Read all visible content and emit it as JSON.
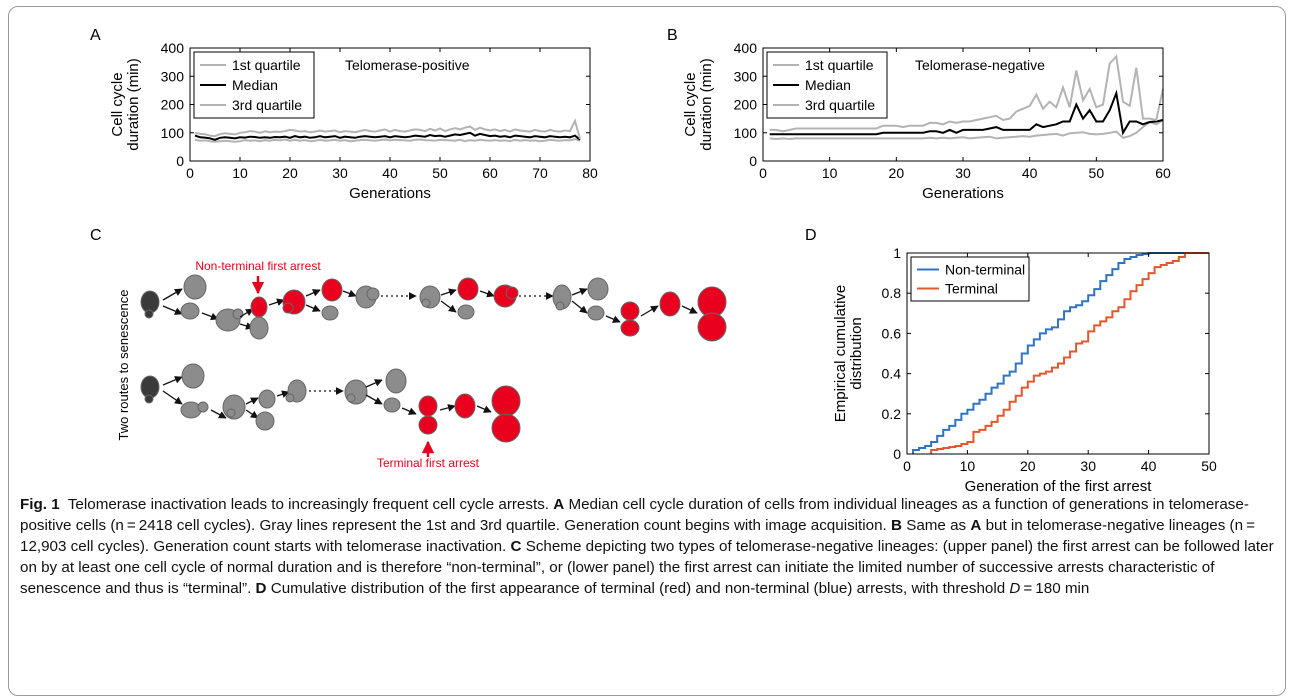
{
  "chart_data": [
    {
      "panel": "A",
      "type": "line",
      "annotation": "Telomerase-positive",
      "xlabel": "Generations",
      "ylabel_lines": [
        "Cell cycle",
        "duration (min)"
      ],
      "xlim": [
        0,
        80
      ],
      "ylim": [
        0,
        400
      ],
      "xticks": [
        0,
        10,
        20,
        30,
        40,
        50,
        60,
        70,
        80
      ],
      "yticks": [
        0,
        100,
        200,
        300,
        400
      ],
      "legend_position": "top-left",
      "x": [
        1,
        2,
        3,
        4,
        5,
        6,
        7,
        8,
        9,
        10,
        11,
        12,
        13,
        14,
        15,
        16,
        17,
        18,
        19,
        20,
        21,
        22,
        23,
        24,
        25,
        26,
        27,
        28,
        29,
        30,
        31,
        32,
        33,
        34,
        35,
        36,
        37,
        38,
        39,
        40,
        41,
        42,
        43,
        44,
        45,
        46,
        47,
        48,
        49,
        50,
        51,
        52,
        53,
        54,
        55,
        56,
        57,
        58,
        59,
        60,
        61,
        62,
        63,
        64,
        65,
        66,
        67,
        68,
        69,
        70,
        71,
        72,
        73,
        74,
        75,
        76,
        77,
        78
      ],
      "series": [
        {
          "name": "1st quartile",
          "color": "#b3b3b3",
          "values": [
            75,
            72,
            73,
            70,
            68,
            70,
            72,
            70,
            68,
            70,
            74,
            72,
            73,
            70,
            74,
            72,
            75,
            73,
            76,
            72,
            75,
            72,
            74,
            70,
            72,
            75,
            72,
            73,
            75,
            72,
            74,
            70,
            72,
            74,
            75,
            73,
            72,
            74,
            76,
            73,
            75,
            74,
            73,
            72,
            75,
            76,
            74,
            73,
            72,
            75,
            74,
            73,
            72,
            75,
            70,
            74,
            72,
            75,
            73,
            72,
            74,
            72,
            73,
            70,
            75,
            72,
            74,
            72,
            73,
            70,
            72,
            75,
            73,
            72,
            74,
            73,
            78,
            72
          ]
        },
        {
          "name": "Median",
          "color": "#000000",
          "values": [
            90,
            84,
            83,
            80,
            75,
            82,
            84,
            82,
            80,
            84,
            83,
            86,
            85,
            82,
            84,
            82,
            85,
            84,
            86,
            82,
            88,
            84,
            86,
            82,
            84,
            88,
            84,
            86,
            88,
            82,
            86,
            84,
            82,
            86,
            88,
            86,
            84,
            86,
            88,
            84,
            88,
            86,
            84,
            86,
            90,
            88,
            86,
            92,
            88,
            90,
            86,
            90,
            94,
            92,
            96,
            100,
            90,
            96,
            92,
            88,
            90,
            86,
            88,
            84,
            90,
            88,
            86,
            84,
            88,
            86,
            84,
            88,
            86,
            84,
            86,
            84,
            90,
            75
          ]
        },
        {
          "name": "3rd quartile",
          "color": "#b3b3b3",
          "values": [
            100,
            96,
            95,
            90,
            88,
            95,
            98,
            96,
            94,
            100,
            102,
            106,
            104,
            100,
            105,
            102,
            104,
            103,
            106,
            110,
            108,
            104,
            106,
            102,
            104,
            108,
            104,
            106,
            108,
            102,
            106,
            104,
            102,
            106,
            110,
            106,
            104,
            108,
            112,
            104,
            110,
            106,
            104,
            108,
            112,
            110,
            106,
            114,
            108,
            115,
            106,
            112,
            116,
            112,
            118,
            122,
            110,
            118,
            112,
            108,
            112,
            106,
            110,
            104,
            112,
            108,
            106,
            104,
            110,
            106,
            104,
            110,
            106,
            104,
            108,
            106,
            142,
            78
          ]
        }
      ]
    },
    {
      "panel": "B",
      "type": "line",
      "annotation": "Telomerase-negative",
      "xlabel": "Generations",
      "ylabel_lines": [
        "Cell cycle",
        "duration (min)"
      ],
      "xlim": [
        0,
        60
      ],
      "ylim": [
        0,
        400
      ],
      "xticks": [
        0,
        10,
        20,
        30,
        40,
        50,
        60
      ],
      "yticks": [
        0,
        100,
        200,
        300,
        400
      ],
      "legend_position": "top-left",
      "x": [
        1,
        2,
        3,
        4,
        5,
        6,
        7,
        8,
        9,
        10,
        11,
        12,
        13,
        14,
        15,
        16,
        17,
        18,
        19,
        20,
        21,
        22,
        23,
        24,
        25,
        26,
        27,
        28,
        29,
        30,
        31,
        32,
        33,
        34,
        35,
        36,
        37,
        38,
        39,
        40,
        41,
        42,
        43,
        44,
        45,
        46,
        47,
        48,
        49,
        50,
        51,
        52,
        53,
        54,
        55,
        56,
        57,
        58,
        59,
        60
      ],
      "series": [
        {
          "name": "1st quartile",
          "color": "#b3b3b3",
          "values": [
            80,
            78,
            80,
            78,
            80,
            80,
            80,
            80,
            80,
            80,
            80,
            80,
            80,
            80,
            80,
            80,
            80,
            80,
            80,
            80,
            80,
            80,
            80,
            80,
            82,
            80,
            82,
            80,
            82,
            84,
            80,
            82,
            84,
            86,
            80,
            82,
            84,
            86,
            88,
            86,
            90,
            92,
            94,
            96,
            90,
            98,
            100,
            102,
            96,
            94,
            96,
            100,
            104,
            82,
            88,
            100,
            120,
            138,
            130,
            145
          ]
        },
        {
          "name": "Median",
          "color": "#000000",
          "values": [
            95,
            95,
            95,
            95,
            95,
            95,
            95,
            95,
            95,
            95,
            95,
            95,
            95,
            95,
            95,
            95,
            95,
            100,
            100,
            100,
            100,
            100,
            100,
            100,
            105,
            105,
            100,
            110,
            100,
            110,
            110,
            110,
            110,
            115,
            120,
            110,
            110,
            110,
            110,
            110,
            130,
            120,
            125,
            130,
            140,
            140,
            200,
            150,
            180,
            140,
            140,
            180,
            240,
            100,
            140,
            140,
            130,
            138,
            140,
            145
          ]
        },
        {
          "name": "3rd quartile",
          "color": "#b3b3b3",
          "values": [
            110,
            110,
            105,
            110,
            115,
            115,
            115,
            115,
            115,
            115,
            115,
            115,
            115,
            115,
            115,
            115,
            115,
            125,
            125,
            125,
            120,
            125,
            125,
            125,
            135,
            135,
            130,
            140,
            135,
            140,
            140,
            145,
            150,
            155,
            160,
            145,
            150,
            175,
            185,
            195,
            235,
            185,
            210,
            190,
            260,
            190,
            320,
            215,
            255,
            190,
            200,
            345,
            370,
            210,
            195,
            330,
            150,
            150,
            145,
            255
          ]
        }
      ]
    },
    {
      "panel": "D",
      "type": "line",
      "xlabel": "Generation of the first arrest",
      "ylabel_lines": [
        "Empirical cumulative",
        "distribution"
      ],
      "xlim": [
        0,
        50
      ],
      "ylim": [
        0,
        1
      ],
      "xticks": [
        0,
        10,
        20,
        30,
        40,
        50
      ],
      "yticks": [
        0,
        0.2,
        0.4,
        0.6,
        0.8,
        1
      ],
      "yticklabels": [
        "0",
        "0.2",
        "0.4",
        "0.6",
        "0.8",
        "1"
      ],
      "legend_position": "top-left",
      "step": true,
      "series": [
        {
          "name": "Non-terminal",
          "color": "#2e74c0",
          "x": [
            1,
            2,
            3,
            4,
            5,
            6,
            7,
            8,
            9,
            10,
            11,
            12,
            13,
            14,
            15,
            16,
            17,
            18,
            19,
            20,
            21,
            22,
            23,
            24,
            25,
            26,
            27,
            28,
            29,
            30,
            31,
            32,
            33,
            34,
            35,
            36,
            37,
            38,
            39,
            40,
            41
          ],
          "y": [
            0.02,
            0.03,
            0.04,
            0.06,
            0.09,
            0.12,
            0.14,
            0.17,
            0.2,
            0.22,
            0.25,
            0.27,
            0.3,
            0.33,
            0.35,
            0.39,
            0.41,
            0.45,
            0.5,
            0.54,
            0.57,
            0.6,
            0.62,
            0.63,
            0.67,
            0.71,
            0.73,
            0.74,
            0.76,
            0.79,
            0.82,
            0.86,
            0.89,
            0.92,
            0.95,
            0.97,
            0.98,
            0.99,
            0.995,
            1.0,
            1.0
          ]
        },
        {
          "name": "Terminal",
          "color": "#e0582c",
          "x": [
            4,
            5,
            6,
            7,
            8,
            9,
            10,
            11,
            12,
            13,
            14,
            15,
            16,
            17,
            18,
            19,
            20,
            21,
            22,
            23,
            24,
            25,
            26,
            27,
            28,
            29,
            30,
            31,
            32,
            33,
            34,
            35,
            36,
            37,
            38,
            39,
            40,
            41,
            42,
            43,
            44,
            45,
            46
          ],
          "y": [
            0.02,
            0.025,
            0.03,
            0.035,
            0.04,
            0.05,
            0.06,
            0.11,
            0.12,
            0.14,
            0.16,
            0.19,
            0.22,
            0.26,
            0.29,
            0.33,
            0.36,
            0.39,
            0.4,
            0.41,
            0.43,
            0.45,
            0.48,
            0.51,
            0.55,
            0.56,
            0.61,
            0.64,
            0.66,
            0.68,
            0.71,
            0.73,
            0.77,
            0.81,
            0.84,
            0.87,
            0.9,
            0.93,
            0.94,
            0.95,
            0.96,
            0.98,
            1.0
          ]
        }
      ]
    }
  ],
  "panel_labels": {
    "A": "A",
    "B": "B",
    "C": "C",
    "D": "D"
  },
  "scheme": {
    "side_label": "Two routes to senescence",
    "nonterminal_label": "Non-terminal first arrest",
    "terminal_label": "Terminal first arrest",
    "colors": {
      "normal": "#8c8c8c",
      "dark": "#3a3a3a",
      "arrest": "#e8001e"
    }
  },
  "caption": {
    "fig": "Fig. 1",
    "intro": "Telomerase inactivation leads to increasingly frequent cell cycle arrests.",
    "A_lbl": "A",
    "A_text": "Median cell cycle duration of cells from individual lineages as a function of generations in telomerase-positive cells (n = 2418 cell cycles). Gray lines represent the 1st and 3rd quartile. Generation count begins with image acquisition.",
    "B_lbl": "B",
    "B_pre": "Same as",
    "B_ref": "A",
    "B_text": "but in telomerase-negative lineages (n = 12,903 cell cycles). Generation count starts with telomerase inactivation.",
    "C_lbl": "C",
    "C_text": "Scheme depicting two types of telomerase-negative lineages: (upper panel) the first arrest can be followed later on by at least one cell cycle of normal duration and is therefore “non-terminal”, or (lower panel) the first arrest can initiate the limited number of successive arrests characteristic of senescence and thus is “terminal”.",
    "D_lbl": "D",
    "D_text": "Cumulative distribution of the first appearance of terminal (red) and non-terminal (blue) arrests, with threshold",
    "D_sym": "D",
    "D_end": " = 180 min"
  }
}
